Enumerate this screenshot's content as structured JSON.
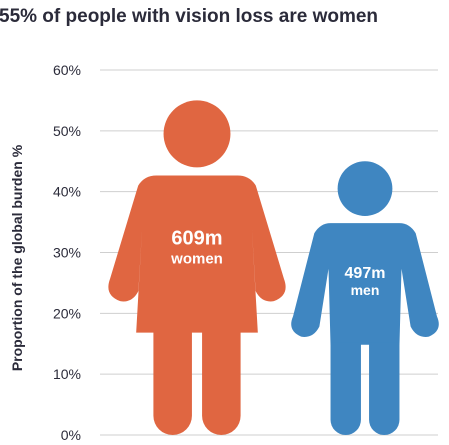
{
  "chart_data": {
    "type": "bar",
    "title": "55% of people with vision loss are women",
    "ylabel": "Proportion of the global burden %",
    "xlabel": "",
    "ylim": [
      0,
      60
    ],
    "y_ticks": [
      "0%",
      "10%",
      "20%",
      "30%",
      "40%",
      "50%",
      "60%"
    ],
    "grid": true,
    "categories": [
      "women",
      "men"
    ],
    "values": [
      55,
      45
    ],
    "data_labels": [
      {
        "value": "609m",
        "label": "women"
      },
      {
        "value": "497m",
        "label": "men"
      }
    ],
    "colors": [
      "#e06641",
      "#3f86c1"
    ]
  }
}
